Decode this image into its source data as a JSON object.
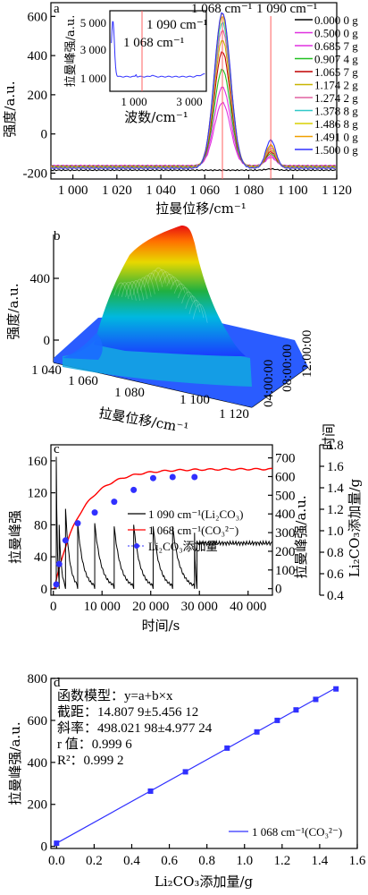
{
  "chart_data": [
    {
      "type": "line",
      "panel": "a",
      "xlabel": "拉曼位移/cm⁻¹",
      "ylabel": "强度/a.u.",
      "xticks": [
        "1 000",
        "1 020",
        "1 040",
        "1 060",
        "1 080",
        "1 100",
        "1 120"
      ],
      "yticks": [
        "-200",
        "0",
        "200",
        "400",
        "600"
      ],
      "xlim": [
        990,
        1120
      ],
      "ylim": [
        -230,
        670
      ],
      "annotations": [
        "1 068 cm⁻¹",
        "1 090 cm⁻¹"
      ],
      "legend_placement": "right",
      "series": [
        {
          "name": "0.000 0 g",
          "color": "#000000",
          "peak1068": -185,
          "peak1090": -165
        },
        {
          "name": "0.500 0 g",
          "color": "#e030e0",
          "peak1068": 160,
          "peak1090": -120
        },
        {
          "name": "0.685 7 g",
          "color": "#e030e0",
          "peak1068": 240,
          "peak1090": -110
        },
        {
          "name": "0.907 4 g",
          "color": "#20c020",
          "peak1068": 330,
          "peak1090": -100
        },
        {
          "name": "1.065 7 g",
          "color": "#c00000",
          "peak1068": 420,
          "peak1090": -90
        },
        {
          "name": "1.174 2 g",
          "color": "#c8b400",
          "peak1068": 480,
          "peak1090": -80
        },
        {
          "name": "1.274 2 g",
          "color": "#e060a0",
          "peak1068": 530,
          "peak1090": -70
        },
        {
          "name": "1.378 8 g",
          "color": "#30c8c8",
          "peak1068": 570,
          "peak1090": -60
        },
        {
          "name": "1.486 8 g",
          "color": "#d8d000",
          "peak1068": 600,
          "peak1090": -55
        },
        {
          "name": "1.491 0 g",
          "color": "#f0a000",
          "peak1068": 615,
          "peak1090": -55
        },
        {
          "name": "1.500 0 g",
          "color": "#3030ff",
          "peak1068": 620,
          "peak1090": -30
        }
      ],
      "inset": {
        "xlabel": "波数/cm⁻¹",
        "ylabel": "拉曼峰强/a.u.",
        "xticks": [
          "1 000",
          "3 000"
        ],
        "yticks": [
          "1 000",
          "3 000",
          "5 000"
        ],
        "annotations": [
          "1 090 cm⁻¹",
          "1 068 cm⁻¹"
        ],
        "xlim": [
          200,
          3400
        ],
        "ylim": [
          0,
          5500
        ]
      }
    },
    {
      "type": "area",
      "panel": "b",
      "xlabel": "拉曼位移/cm⁻¹",
      "ylabel": "强度/a.u.",
      "zlabel": "时间",
      "xticks": [
        "1 040",
        "1 060",
        "1 080",
        "1 100",
        "1 120"
      ],
      "yticks": [
        "0",
        "400"
      ],
      "zticks": [
        "04:00:00",
        "08:00:00",
        "12:00:00"
      ]
    },
    {
      "type": "line",
      "panel": "c",
      "xlabel": "时间/s",
      "ylabel_left": "拉曼峰强",
      "ylabel_right": "拉曼峰强/a.u.",
      "ylabel_right2": "Li₂CO₃添加量/g",
      "xticks": [
        "0",
        "10 000",
        "20 000",
        "30 000",
        "40 000"
      ],
      "yticks_left": [
        "0",
        "40",
        "80",
        "120",
        "160"
      ],
      "yticks_right": [
        "0",
        "100",
        "200",
        "300",
        "400",
        "500",
        "600",
        "700"
      ],
      "yticks_right2": [
        "0.4",
        "0.6",
        "0.8",
        "1.0",
        "1.2",
        "1.4",
        "1.6",
        "1.8"
      ],
      "xlim": [
        -500,
        45000
      ],
      "ylim_left": [
        -8,
        180
      ],
      "ylim_right": [
        -35,
        770
      ],
      "ylim_right2": [
        0.4,
        1.8
      ],
      "legend": [
        "1 090 cm⁻¹(Li₂CO₃)",
        "1 068 cm⁻¹(CO₃²⁻)",
        "Li₂CO₃添加量"
      ],
      "additions": {
        "x": [
          600,
          1200,
          2500,
          5000,
          8500,
          12500,
          16500,
          20500,
          24500,
          29000
        ],
        "g": [
          0.5,
          0.69,
          0.91,
          1.07,
          1.17,
          1.27,
          1.38,
          1.49,
          1.5,
          1.5
        ]
      },
      "peak_1090_series": {
        "drops_x": [
          600,
          1200,
          2500,
          5000,
          8500,
          12500,
          16500,
          20500,
          24500,
          29000
        ],
        "peak_height": [
          165,
          80,
          100,
          82,
          82,
          78,
          80,
          78,
          78,
          70
        ],
        "plateau_after": 29500,
        "plateau_value": 57
      },
      "peak_1068_series": {
        "start": 0,
        "end_value": 640,
        "end_x": 45000
      }
    },
    {
      "type": "scatter",
      "panel": "d",
      "xlabel": "Li₂CO₃添加量/g",
      "ylabel": "拉曼峰强/a.u.",
      "xticks": [
        "0.0",
        "0.2",
        "0.4",
        "0.6",
        "0.8",
        "1.0",
        "1.2",
        "1.4",
        "1.6"
      ],
      "yticks": [
        "0",
        "200",
        "400",
        "600",
        "800"
      ],
      "xlim": [
        -0.03,
        1.6
      ],
      "ylim": [
        -10,
        800
      ],
      "x": [
        0.0,
        0.5,
        0.6857,
        0.9074,
        1.0657,
        1.1742,
        1.2742,
        1.3788,
        1.4868
      ],
      "y": [
        15,
        263,
        355,
        468,
        545,
        600,
        650,
        700,
        750
      ],
      "fit": {
        "intercept": 14.8079,
        "slope": 498.02198
      },
      "legend": "1 068 cm⁻¹(CO₃²⁻)",
      "annotations": [
        "函数模型：y=a+b×x",
        "截距：14.807 9±5.456 12",
        "斜率：498.021 98±4.977 24",
        "r 值：0.999 6",
        "R²：0.999 2"
      ]
    }
  ],
  "panel_labels": [
    "a",
    "b",
    "c",
    "d"
  ]
}
